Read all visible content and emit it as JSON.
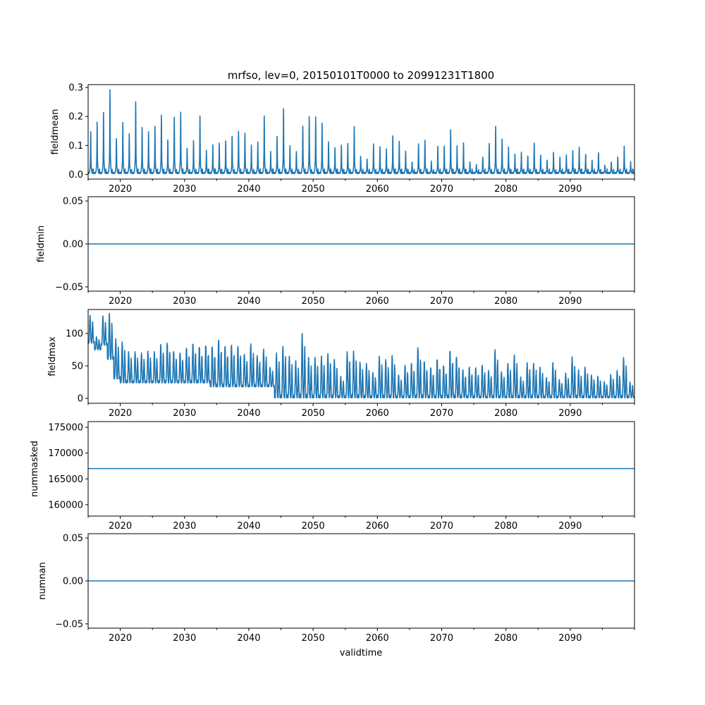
{
  "chart_data": [
    {
      "type": "line",
      "title": "mrfso, lev=0, 20150101T0000 to 20991231T1800",
      "ylabel": "fieldmean",
      "xlabel": "",
      "xlim": [
        2015,
        2100
      ],
      "ylim": [
        -0.016,
        0.31
      ],
      "yticks": [
        0.0,
        0.1,
        0.2,
        0.3
      ],
      "ytick_labels": [
        "0.0",
        "0.1",
        "0.2",
        "0.3"
      ],
      "color": "#1f77b4",
      "series_description": "annual peak of fieldmean, years 2015-2099, baseline near 0.0",
      "years_start": 2015,
      "annual_peak": [
        0.146,
        0.18,
        0.215,
        0.295,
        0.125,
        0.18,
        0.14,
        0.25,
        0.16,
        0.145,
        0.165,
        0.205,
        0.12,
        0.2,
        0.217,
        0.09,
        0.115,
        0.2,
        0.08,
        0.1,
        0.107,
        0.116,
        0.133,
        0.15,
        0.143,
        0.1,
        0.11,
        0.2,
        0.076,
        0.13,
        0.228,
        0.1,
        0.08,
        0.168,
        0.2,
        0.198,
        0.175,
        0.11,
        0.09,
        0.1,
        0.107,
        0.167,
        0.063,
        0.053,
        0.104,
        0.093,
        0.085,
        0.131,
        0.113,
        0.08,
        0.043,
        0.107,
        0.119,
        0.045,
        0.095,
        0.095,
        0.152,
        0.097,
        0.108,
        0.043,
        0.034,
        0.06,
        0.107,
        0.165,
        0.12,
        0.092,
        0.067,
        0.075,
        0.063,
        0.109,
        0.067,
        0.049,
        0.075,
        0.057,
        0.064,
        0.079,
        0.092,
        0.068,
        0.049,
        0.076,
        0.032,
        0.042,
        0.058,
        0.095,
        0.041
      ],
      "baseline": 0.003
    },
    {
      "type": "line",
      "ylabel": "fieldmin",
      "xlim": [
        2015,
        2100
      ],
      "ylim": [
        -0.055,
        0.055
      ],
      "yticks": [
        -0.05,
        0.0,
        0.05
      ],
      "ytick_labels": [
        "−0.05",
        "0.00",
        "0.05"
      ],
      "color": "#1f77b4",
      "constant": 0.0
    },
    {
      "type": "line",
      "ylabel": "fieldmax",
      "xlim": [
        2015,
        2100
      ],
      "ylim": [
        -7.5,
        137
      ],
      "yticks": [
        0,
        50,
        100
      ],
      "ytick_labels": [
        "0",
        "50",
        "100"
      ],
      "color": "#1f77b4",
      "years_start": 2015,
      "annual_max": [
        128,
        95,
        127,
        131,
        92,
        87,
        72,
        72,
        70,
        73,
        72,
        83,
        85,
        72,
        70,
        78,
        85,
        80,
        82,
        80,
        90,
        80,
        82,
        80,
        68,
        84,
        66,
        76,
        48,
        70,
        80,
        65,
        58,
        100,
        63,
        63,
        65,
        69,
        60,
        34,
        72,
        73,
        56,
        54,
        40,
        65,
        60,
        66,
        36,
        51,
        54,
        78,
        57,
        48,
        61,
        51,
        74,
        64,
        44,
        48,
        47,
        51,
        43,
        75,
        41,
        54,
        67,
        33,
        55,
        54,
        48,
        32,
        55,
        29,
        39,
        64,
        44,
        48,
        36,
        34,
        26,
        37,
        43,
        63,
        25
      ],
      "annual_min": [
        85,
        75,
        82,
        60,
        30,
        24,
        24,
        24,
        24,
        24,
        24,
        24,
        24,
        24,
        24,
        24,
        24,
        24,
        24,
        18,
        18,
        18,
        18,
        18,
        18,
        18,
        18,
        18,
        18,
        1,
        1,
        1,
        1,
        1,
        1,
        1,
        1,
        1,
        1,
        1,
        1,
        1,
        1,
        1,
        1,
        1,
        1,
        1,
        1,
        1,
        1,
        1,
        1,
        1,
        1,
        1,
        1,
        1,
        1,
        1,
        1,
        1,
        1,
        1,
        1,
        1,
        1,
        1,
        1,
        1,
        1,
        1,
        1,
        1,
        1,
        1,
        1,
        1,
        1,
        1,
        1,
        1,
        1,
        1,
        1
      ]
    },
    {
      "type": "line",
      "ylabel": "nummasked",
      "xlim": [
        2015,
        2100
      ],
      "ylim": [
        157800,
        176100
      ],
      "yticks": [
        160000,
        165000,
        170000,
        175000
      ],
      "ytick_labels": [
        "160000",
        "165000",
        "170000",
        "175000"
      ],
      "color": "#1f77b4",
      "constant": 167000
    },
    {
      "type": "line",
      "ylabel": "numnan",
      "xlabel": "validtime",
      "xlim": [
        2015,
        2100
      ],
      "ylim": [
        -0.055,
        0.055
      ],
      "yticks": [
        -0.05,
        0.0,
        0.05
      ],
      "ytick_labels": [
        "−0.05",
        "0.00",
        "0.05"
      ],
      "color": "#1f77b4",
      "constant": 0.0
    }
  ],
  "xaxis": {
    "major_ticks": [
      2020,
      2030,
      2040,
      2050,
      2060,
      2070,
      2080,
      2090
    ],
    "major_labels": [
      "2020",
      "2030",
      "2040",
      "2050",
      "2060",
      "2070",
      "2080",
      "2090"
    ],
    "minor_ticks": [
      2015,
      2025,
      2035,
      2045,
      2055,
      2065,
      2075,
      2085,
      2095,
      2100
    ]
  }
}
